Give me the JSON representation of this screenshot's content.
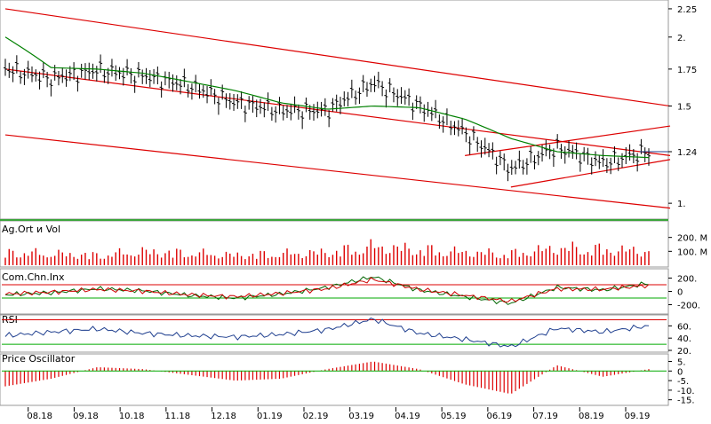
{
  "chart_data": [
    {
      "type": "line",
      "panel": "price",
      "title": "",
      "y_scale": "log",
      "ylim": [
        0.95,
        2.3
      ],
      "y_ticks": [
        2.25,
        2,
        1.75,
        1.5,
        1.24,
        1
      ],
      "y_tick_labels": [
        "2.25",
        "2.",
        "1.75",
        "1.5",
        "1.24",
        "1."
      ],
      "last_price": 1.24,
      "series": [
        {
          "kind": "ohlc-bars",
          "color": "#000000",
          "x": [
            "2018-07",
            "2018-08",
            "2018-09",
            "2018-10",
            "2018-11",
            "2018-12",
            "2019-01",
            "2019-02",
            "2019-03",
            "2019-04",
            "2019-05",
            "2019-06",
            "2019-07",
            "2019-08",
            "2019-09"
          ],
          "close": [
            1.75,
            1.68,
            1.74,
            1.7,
            1.63,
            1.52,
            1.47,
            1.47,
            1.65,
            1.5,
            1.34,
            1.15,
            1.26,
            1.18,
            1.24
          ]
        },
        {
          "kind": "moving-average",
          "color": "#008000",
          "values": [
            2.0,
            1.76,
            1.75,
            1.72,
            1.66,
            1.6,
            1.52,
            1.48,
            1.5,
            1.49,
            1.42,
            1.31,
            1.24,
            1.22,
            1.21
          ]
        }
      ],
      "trend_lines": [
        {
          "color": "#dd0000",
          "from": [
            "2018-07",
            2.25
          ],
          "to": [
            "2019-09",
            1.5
          ]
        },
        {
          "color": "#dd0000",
          "from": [
            "2018-07",
            1.75
          ],
          "to": [
            "2019-09",
            1.22
          ]
        },
        {
          "color": "#dd0000",
          "from": [
            "2018-07",
            1.33
          ],
          "to": [
            "2019-09",
            0.98
          ]
        },
        {
          "color": "#dd0000",
          "from": [
            "2019-05",
            1.22
          ],
          "to": [
            "2019-09",
            1.38
          ]
        },
        {
          "color": "#dd0000",
          "from": [
            "2019-06",
            1.07
          ],
          "to": [
            "2019-09",
            1.2
          ]
        }
      ]
    },
    {
      "type": "bar",
      "panel": "volume",
      "title": "Ag.Ort и Vol",
      "color": "#dd0000",
      "y_ticks": [
        200,
        100
      ],
      "y_tick_labels": [
        "200. M",
        "100. M"
      ],
      "ylim": [
        0,
        300
      ],
      "x": [
        "2018-07",
        "2018-08",
        "2018-09",
        "2018-10",
        "2018-11",
        "2018-12",
        "2019-01",
        "2019-02",
        "2019-03",
        "2019-04",
        "2019-05",
        "2019-06",
        "2019-07",
        "2019-08",
        "2019-09"
      ],
      "values": [
        90,
        80,
        70,
        95,
        85,
        70,
        80,
        90,
        130,
        110,
        90,
        80,
        120,
        110,
        100
      ]
    },
    {
      "type": "line",
      "panel": "cci",
      "title": "Com.Chn.Inx",
      "ylim": [
        -300,
        300
      ],
      "reference_lines": [
        {
          "value": 100,
          "color": "#dd0000"
        },
        {
          "value": -100,
          "color": "#00aa00"
        }
      ],
      "y_ticks": [
        200,
        0,
        -200
      ],
      "y_tick_labels": [
        "200.",
        "0",
        "-200."
      ],
      "x": [
        "2018-07",
        "2018-08",
        "2018-09",
        "2018-10",
        "2018-11",
        "2018-12",
        "2019-01",
        "2019-02",
        "2019-03",
        "2019-04",
        "2019-05",
        "2019-06",
        "2019-07",
        "2019-08",
        "2019-09"
      ],
      "series": [
        {
          "color": "#006400",
          "values": [
            -50,
            -20,
            40,
            10,
            -60,
            -100,
            -40,
            60,
            220,
            20,
            -80,
            -180,
            60,
            20,
            120
          ]
        },
        {
          "color": "#cc0000",
          "values": [
            -40,
            -10,
            30,
            5,
            -50,
            -80,
            -30,
            40,
            180,
            30,
            -60,
            -150,
            40,
            30,
            90
          ]
        }
      ]
    },
    {
      "type": "line",
      "panel": "rsi",
      "title": "RSI",
      "ylim": [
        20,
        75
      ],
      "reference_lines": [
        {
          "value": 70,
          "color": "#dd0000"
        },
        {
          "value": 30,
          "color": "#00aa00"
        }
      ],
      "y_ticks": [
        60,
        40,
        20
      ],
      "y_tick_labels": [
        "60.",
        "40.",
        "20."
      ],
      "color": "#1f3f8f",
      "x": [
        "2018-07",
        "2018-08",
        "2018-09",
        "2018-10",
        "2018-11",
        "2018-12",
        "2019-01",
        "2019-02",
        "2019-03",
        "2019-04",
        "2019-05",
        "2019-06",
        "2019-07",
        "2019-08",
        "2019-09"
      ],
      "values": [
        44,
        50,
        55,
        48,
        44,
        42,
        46,
        54,
        71,
        48,
        38,
        26,
        56,
        50,
        60
      ]
    },
    {
      "type": "bar",
      "panel": "price-oscillator",
      "title": "Price Oscillator",
      "color": "#dd0000",
      "ylim": [
        -17,
        8
      ],
      "reference_lines": [
        {
          "value": 0,
          "color": "#00aa00"
        }
      ],
      "y_ticks": [
        5,
        0,
        -5,
        -10,
        -15
      ],
      "y_tick_labels": [
        "5.",
        "0",
        "-5.",
        "-10.",
        "-15."
      ],
      "x": [
        "2018-07",
        "2018-08",
        "2018-09",
        "2018-10",
        "2018-11",
        "2018-12",
        "2019-01",
        "2019-02",
        "2019-03",
        "2019-04",
        "2019-05",
        "2019-06",
        "2019-07",
        "2019-08",
        "2019-09"
      ],
      "values": [
        -8,
        -4,
        2,
        1,
        -2,
        -5,
        -4,
        1,
        5,
        1,
        -7,
        -12,
        3,
        -3,
        1
      ]
    }
  ],
  "x_axis": {
    "tick_labels": [
      "08.18",
      "09.18",
      "10.18",
      "11.18",
      "12.18",
      "01.19",
      "02.19",
      "03.19",
      "04.19",
      "05.19",
      "06.19",
      "07.19",
      "08.19",
      "09.19"
    ]
  }
}
